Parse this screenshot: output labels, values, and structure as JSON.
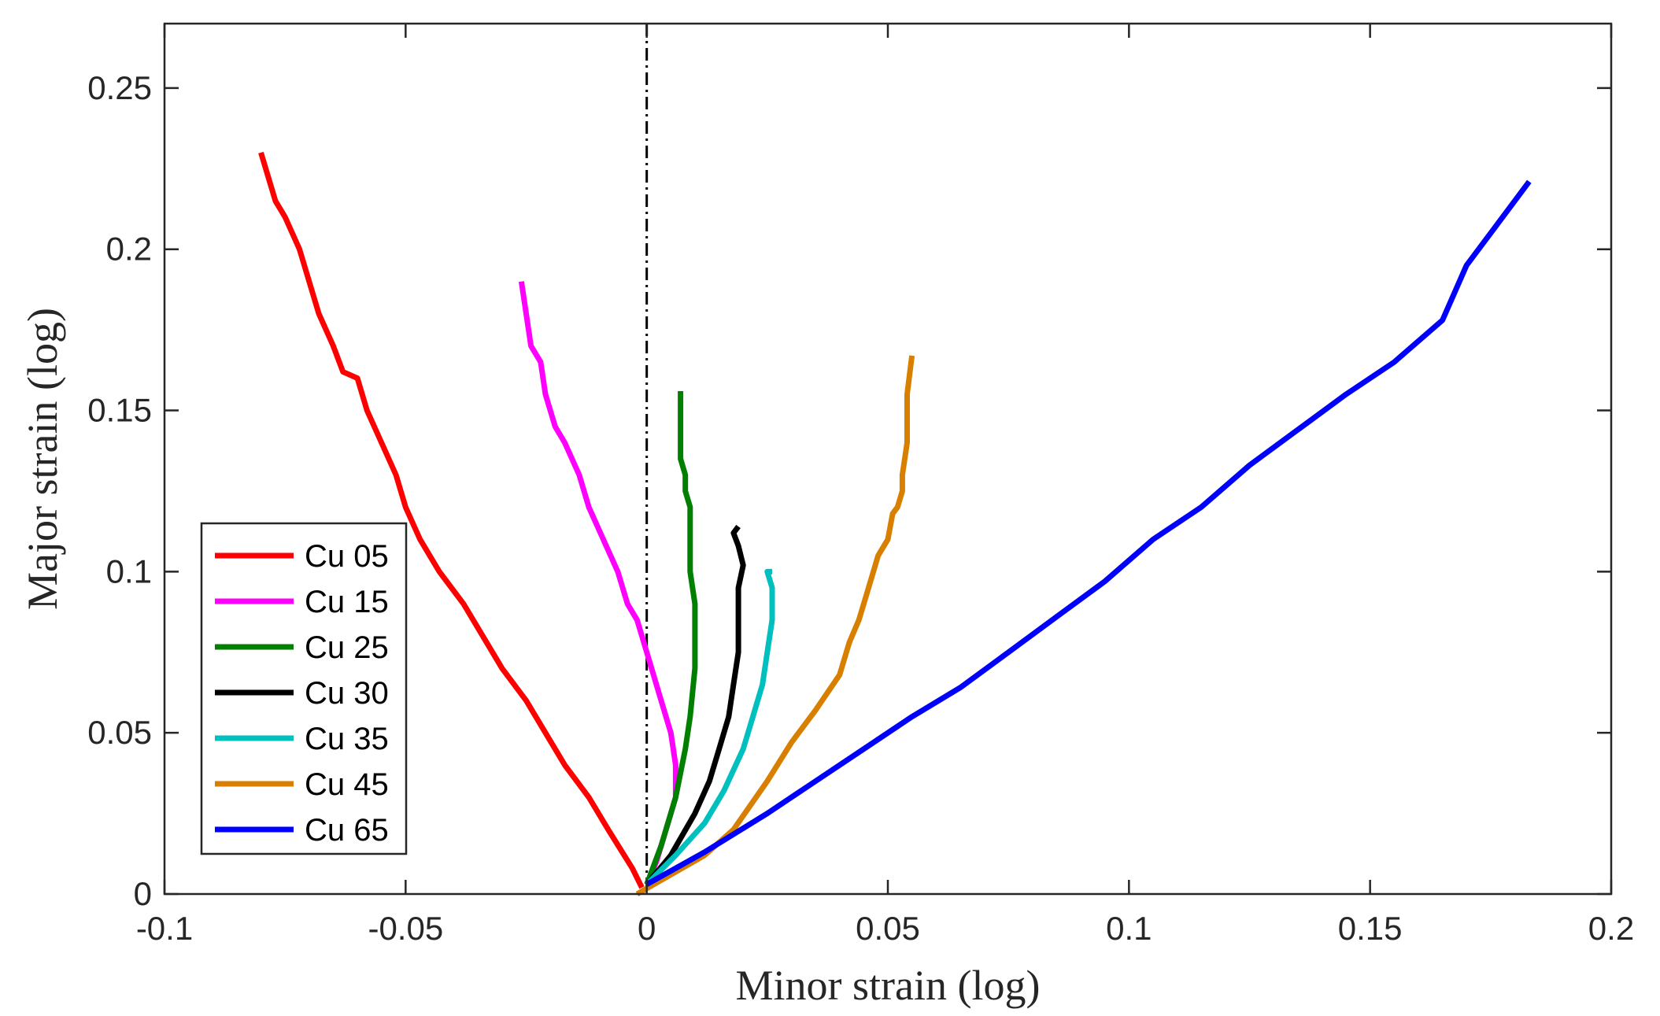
{
  "chart_data": {
    "type": "line",
    "title": "",
    "xlabel": "Minor strain (log)",
    "ylabel": "Major strain (log)",
    "xlim": [
      -0.1,
      0.2
    ],
    "ylim": [
      0,
      0.27
    ],
    "xticks": [
      -0.1,
      -0.05,
      0,
      0.05,
      0.1,
      0.15,
      0.2
    ],
    "xtick_labels": [
      "-0.1",
      "-0.05",
      "0",
      "0.05",
      "0.1",
      "0.15",
      "0.2"
    ],
    "yticks": [
      0,
      0.05,
      0.1,
      0.15,
      0.2,
      0.25
    ],
    "ytick_labels": [
      "0",
      "0.05",
      "0.1",
      "0.15",
      "0.2",
      "0.25"
    ],
    "grid": false,
    "legend_position": "bottom-left",
    "reference_line": {
      "x": 0,
      "style": "dash-dot",
      "color": "#000000"
    },
    "series": [
      {
        "name": "Cu 05",
        "color": "#ff0000",
        "x": [
          -0.001,
          -0.003,
          -0.008,
          -0.012,
          -0.017,
          -0.021,
          -0.025,
          -0.03,
          -0.034,
          -0.038,
          -0.043,
          -0.047,
          -0.05,
          -0.052,
          -0.055,
          -0.058,
          -0.06,
          -0.063,
          -0.065,
          -0.068,
          -0.07,
          -0.072,
          -0.075,
          -0.077,
          -0.08
        ],
        "y": [
          0.002,
          0.008,
          0.02,
          0.03,
          0.04,
          0.05,
          0.06,
          0.07,
          0.08,
          0.09,
          0.1,
          0.11,
          0.12,
          0.13,
          0.14,
          0.15,
          0.16,
          0.162,
          0.17,
          0.18,
          0.19,
          0.2,
          0.21,
          0.215,
          0.23
        ]
      },
      {
        "name": "Cu 15",
        "color": "#ff00ff",
        "x": [
          0.0,
          0.002,
          0.004,
          0.006,
          0.006,
          0.005,
          0.003,
          0.001,
          0.0,
          -0.002,
          -0.004,
          -0.006,
          -0.009,
          -0.012,
          -0.014,
          -0.017,
          -0.019,
          -0.021,
          -0.022,
          -0.024,
          -0.025,
          -0.026
        ],
        "y": [
          0.003,
          0.01,
          0.02,
          0.03,
          0.04,
          0.05,
          0.06,
          0.07,
          0.075,
          0.085,
          0.09,
          0.1,
          0.11,
          0.12,
          0.13,
          0.14,
          0.145,
          0.155,
          0.165,
          0.17,
          0.18,
          0.19
        ]
      },
      {
        "name": "Cu 25",
        "color": "#007f00",
        "x": [
          0.0,
          0.003,
          0.006,
          0.008,
          0.009,
          0.01,
          0.01,
          0.01,
          0.009,
          0.009,
          0.009,
          0.008,
          0.008,
          0.007,
          0.007,
          0.007
        ],
        "y": [
          0.003,
          0.015,
          0.03,
          0.045,
          0.055,
          0.07,
          0.08,
          0.09,
          0.1,
          0.11,
          0.12,
          0.125,
          0.13,
          0.135,
          0.145,
          0.156
        ]
      },
      {
        "name": "Cu 30",
        "color": "#000000",
        "x": [
          0.0,
          0.005,
          0.01,
          0.013,
          0.015,
          0.017,
          0.018,
          0.019,
          0.019,
          0.019,
          0.02,
          0.019,
          0.018,
          0.019
        ],
        "y": [
          0.003,
          0.012,
          0.025,
          0.035,
          0.045,
          0.055,
          0.065,
          0.075,
          0.085,
          0.095,
          0.102,
          0.108,
          0.112,
          0.114
        ]
      },
      {
        "name": "Cu 35",
        "color": "#00bfbf",
        "x": [
          0.0,
          0.006,
          0.012,
          0.016,
          0.02,
          0.022,
          0.024,
          0.025,
          0.026,
          0.026,
          0.025,
          0.026
        ],
        "y": [
          0.003,
          0.012,
          0.022,
          0.032,
          0.045,
          0.055,
          0.065,
          0.075,
          0.085,
          0.095,
          0.1,
          0.1
        ]
      },
      {
        "name": "Cu 45",
        "color": "#d97f00",
        "x": [
          -0.002,
          0.005,
          0.012,
          0.018,
          0.025,
          0.03,
          0.035,
          0.04,
          0.042,
          0.044,
          0.046,
          0.048,
          0.05,
          0.051,
          0.052,
          0.053,
          0.053,
          0.054,
          0.054,
          0.055
        ],
        "y": [
          0.0,
          0.006,
          0.012,
          0.02,
          0.035,
          0.047,
          0.057,
          0.068,
          0.078,
          0.085,
          0.095,
          0.105,
          0.11,
          0.118,
          0.12,
          0.125,
          0.13,
          0.14,
          0.155,
          0.167
        ]
      },
      {
        "name": "Cu 65",
        "color": "#0000ff",
        "x": [
          0.0,
          0.012,
          0.025,
          0.035,
          0.045,
          0.055,
          0.065,
          0.075,
          0.085,
          0.095,
          0.105,
          0.115,
          0.125,
          0.135,
          0.145,
          0.155,
          0.165,
          0.17,
          0.175,
          0.183
        ],
        "y": [
          0.003,
          0.013,
          0.025,
          0.035,
          0.045,
          0.055,
          0.064,
          0.075,
          0.086,
          0.097,
          0.11,
          0.12,
          0.133,
          0.144,
          0.155,
          0.165,
          0.178,
          0.195,
          0.205,
          0.221
        ]
      }
    ]
  }
}
